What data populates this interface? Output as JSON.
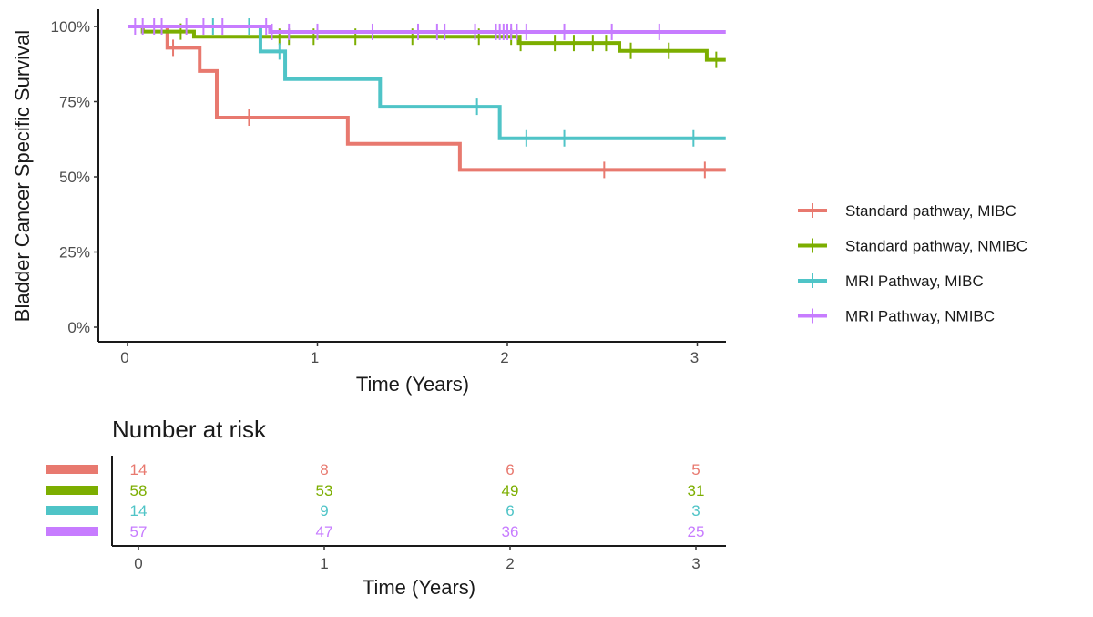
{
  "chart_data": {
    "type": "line",
    "subtype": "kaplan-meier",
    "ylabel": "Bladder Cancer Specific Survival",
    "xlabel": "Time (Years)",
    "xlim": [
      0,
      3.15
    ],
    "ylim": [
      0,
      1
    ],
    "x_ticks": [
      0,
      1,
      2,
      3
    ],
    "y_ticks": [
      0,
      0.25,
      0.5,
      0.75,
      1.0
    ],
    "y_tick_labels": [
      "0%",
      "25%",
      "50%",
      "75%",
      "100%"
    ],
    "grid": false,
    "legend_position": "right",
    "series": [
      {
        "name": "Standard pathway, MIBC",
        "color": "#e8796f",
        "steps": [
          [
            0,
            1.0
          ],
          [
            0.21,
            0.929
          ],
          [
            0.38,
            0.852
          ],
          [
            0.47,
            0.697
          ],
          [
            1.16,
            0.61
          ],
          [
            1.75,
            0.523
          ],
          [
            3.15,
            0.523
          ]
        ],
        "censor": [
          0.24,
          0.64,
          2.51,
          3.04
        ]
      },
      {
        "name": "Standard pathway, NMIBC",
        "color": "#7cae00",
        "steps": [
          [
            0,
            1.0
          ],
          [
            0.08,
            0.983
          ],
          [
            0.35,
            0.966
          ],
          [
            2.06,
            0.945
          ],
          [
            2.59,
            0.919
          ],
          [
            3.05,
            0.889
          ],
          [
            3.15,
            0.889
          ]
        ],
        "censor": [
          0.28,
          0.8,
          0.85,
          0.98,
          1.2,
          1.5,
          1.85,
          2.02,
          2.07,
          2.25,
          2.35,
          2.45,
          2.52,
          2.65,
          2.85,
          3.1
        ]
      },
      {
        "name": "MRI Pathway, MIBC",
        "color": "#4fc4c7",
        "steps": [
          [
            0,
            1.0
          ],
          [
            0.7,
            0.917
          ],
          [
            0.83,
            0.825
          ],
          [
            1.33,
            0.733
          ],
          [
            1.96,
            0.628
          ],
          [
            3.15,
            0.628
          ]
        ],
        "censor": [
          0.45,
          0.64,
          0.8,
          1.84,
          2.1,
          2.3,
          2.98
        ]
      },
      {
        "name": "MRI Pathway, NMIBC",
        "color": "#c77cff",
        "steps": [
          [
            0,
            1.0
          ],
          [
            0.75,
            0.982
          ],
          [
            3.15,
            0.982
          ]
        ],
        "censor": [
          0.04,
          0.08,
          0.14,
          0.18,
          0.31,
          0.4,
          0.5,
          0.73,
          0.76,
          0.85,
          1.0,
          1.29,
          1.53,
          1.63,
          1.67,
          1.83,
          1.94,
          1.96,
          1.98,
          2.0,
          2.02,
          2.05,
          2.1,
          2.3,
          2.55,
          2.8
        ]
      }
    ],
    "risk_table": {
      "title": "Number at risk",
      "xlabel": "Time (Years)",
      "times": [
        0,
        1,
        2,
        3
      ],
      "rows": [
        {
          "series": "Standard pathway, MIBC",
          "values": [
            14,
            8,
            6,
            5
          ]
        },
        {
          "series": "Standard pathway, NMIBC",
          "values": [
            58,
            53,
            49,
            31
          ]
        },
        {
          "series": "MRI Pathway, MIBC",
          "values": [
            14,
            9,
            6,
            3
          ]
        },
        {
          "series": "MRI Pathway, NMIBC",
          "values": [
            57,
            47,
            36,
            25
          ]
        }
      ]
    }
  }
}
